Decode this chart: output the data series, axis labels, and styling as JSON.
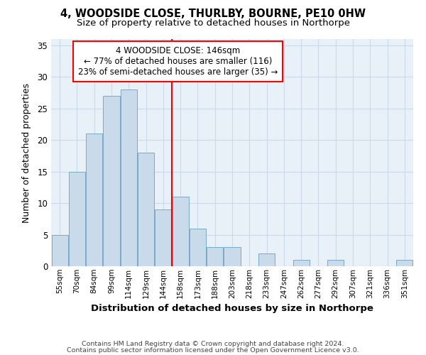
{
  "title1": "4, WOODSIDE CLOSE, THURLBY, BOURNE, PE10 0HW",
  "title2": "Size of property relative to detached houses in Northorpe",
  "xlabel": "Distribution of detached houses by size in Northorpe",
  "ylabel": "Number of detached properties",
  "categories": [
    "55sqm",
    "70sqm",
    "84sqm",
    "99sqm",
    "114sqm",
    "129sqm",
    "144sqm",
    "158sqm",
    "173sqm",
    "188sqm",
    "203sqm",
    "218sqm",
    "233sqm",
    "247sqm",
    "262sqm",
    "277sqm",
    "292sqm",
    "307sqm",
    "321sqm",
    "336sqm",
    "351sqm"
  ],
  "values": [
    5,
    15,
    21,
    27,
    28,
    18,
    9,
    11,
    6,
    3,
    3,
    0,
    2,
    0,
    1,
    0,
    1,
    0,
    0,
    0,
    1
  ],
  "bar_color": "#c9daea",
  "bar_edge_color": "#7aaac8",
  "vline_x": 6.5,
  "vline_color": "red",
  "annotation_line1": "4 WOODSIDE CLOSE: 146sqm",
  "annotation_line2": "← 77% of detached houses are smaller (116)",
  "annotation_line3": "23% of semi-detached houses are larger (35) →",
  "annotation_box_color": "white",
  "annotation_box_edge": "red",
  "ylim": [
    0,
    36
  ],
  "yticks": [
    0,
    5,
    10,
    15,
    20,
    25,
    30,
    35
  ],
  "grid_color": "#ccd9e8",
  "bg_color": "#e8f0f8",
  "footer1": "Contains HM Land Registry data © Crown copyright and database right 2024.",
  "footer2": "Contains public sector information licensed under the Open Government Licence v3.0."
}
